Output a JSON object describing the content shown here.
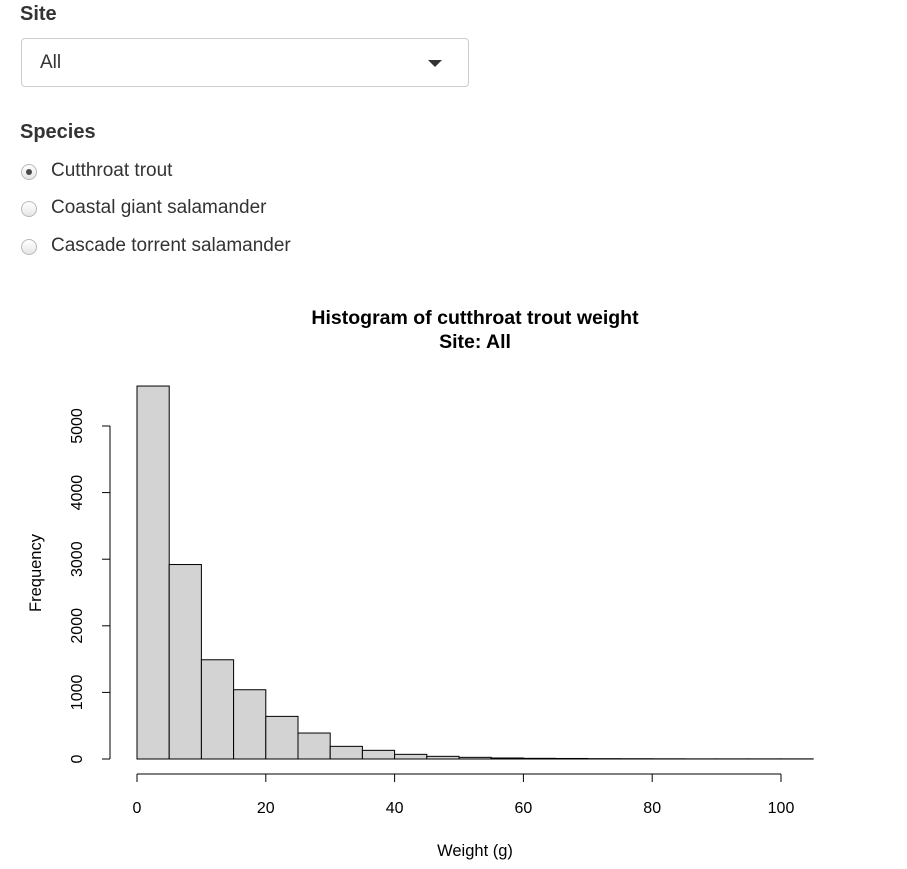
{
  "site": {
    "label": "Site",
    "selected": "All"
  },
  "species": {
    "label": "Species",
    "options": [
      {
        "label": "Cutthroat trout",
        "checked": true
      },
      {
        "label": "Coastal giant salamander",
        "checked": false
      },
      {
        "label": "Cascade torrent salamander",
        "checked": false
      }
    ]
  },
  "chart_data": {
    "type": "bar",
    "title": "Histogram of cutthroat trout weight",
    "subtitle": "Site: All",
    "xlabel": "Weight (g)",
    "ylabel": "Frequency",
    "bins": [
      [
        0,
        5
      ],
      [
        5,
        10
      ],
      [
        10,
        15
      ],
      [
        15,
        20
      ],
      [
        20,
        25
      ],
      [
        25,
        30
      ],
      [
        30,
        35
      ],
      [
        35,
        40
      ],
      [
        40,
        45
      ],
      [
        45,
        50
      ],
      [
        50,
        55
      ],
      [
        55,
        60
      ],
      [
        60,
        65
      ],
      [
        65,
        70
      ],
      [
        70,
        75
      ],
      [
        75,
        80
      ],
      [
        80,
        85
      ],
      [
        85,
        90
      ],
      [
        90,
        95
      ],
      [
        95,
        100
      ],
      [
        100,
        105
      ]
    ],
    "values": [
      5600,
      2920,
      1490,
      1040,
      640,
      390,
      190,
      130,
      70,
      40,
      25,
      15,
      10,
      8,
      5,
      4,
      3,
      2,
      2,
      2,
      2
    ],
    "xlim": [
      0,
      105
    ],
    "ylim": [
      0,
      5600
    ],
    "xticks": [
      0,
      20,
      40,
      60,
      80,
      100
    ],
    "yticks": [
      0,
      1000,
      2000,
      3000,
      4000,
      5000
    ],
    "bar_fill": "#d3d3d3",
    "bar_stroke": "#000000",
    "grid": false
  }
}
